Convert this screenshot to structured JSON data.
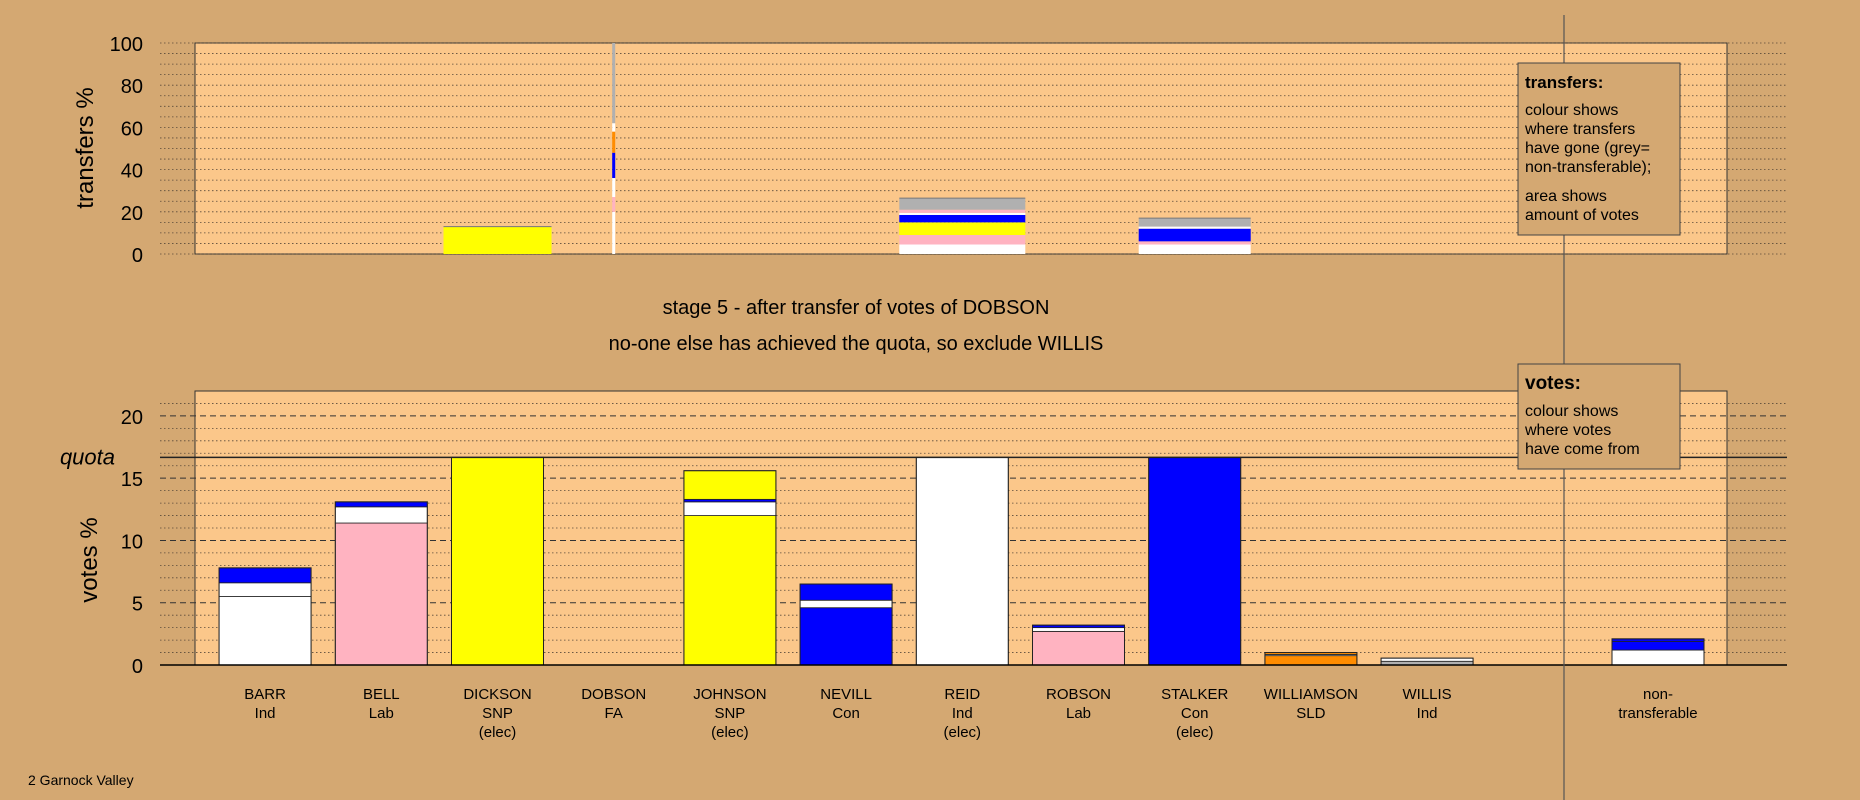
{
  "colors": {
    "background": "#d4a872",
    "panel": "#fbc78a",
    "con": "#0000ff",
    "snp": "#ffff00",
    "lab": "#ffb3c1",
    "ind": "#ffffff",
    "sld": "#ff8c00",
    "nontransferable": "#b0b0b0"
  },
  "stage_text": {
    "line1": "stage 5 - after transfer of votes of DOBSON",
    "line2": "no-one else has achieved the quota, so exclude WILLIS"
  },
  "footer": {
    "area": "2 Garnock Valley"
  },
  "legend_transfers": {
    "title": "transfers:",
    "lines": [
      "colour shows",
      "where transfers",
      "have gone (grey=",
      "non-transferable);"
    ],
    "lines2": [
      "area shows",
      "amount of votes"
    ]
  },
  "legend_votes": {
    "title": "votes:",
    "lines": [
      "colour shows",
      "where votes",
      "have come from"
    ]
  },
  "quota_label": "quota",
  "chart_data": [
    {
      "type": "bar",
      "ylabel": "transfers %",
      "ylim": [
        0,
        100
      ],
      "yticks": [
        0,
        20,
        40,
        60,
        80,
        100
      ],
      "grid": true,
      "bars": [
        {
          "cand": "DICKSON",
          "segments": [
            {
              "color": "snp",
              "value": 13
            }
          ]
        },
        {
          "cand": "REID",
          "segments": [
            {
              "color": "ind",
              "value": 4.5
            },
            {
              "color": "lab",
              "value": 4.5
            },
            {
              "color": "snp",
              "value": 6
            },
            {
              "color": "con",
              "value": 3.5
            },
            {
              "color": "ind",
              "value": 1
            },
            {
              "color": "lab",
              "value": 1.5
            },
            {
              "color": "nontransferable",
              "value": 5.5
            }
          ]
        },
        {
          "cand": "STALKER",
          "segments": [
            {
              "color": "ind",
              "value": 4.5
            },
            {
              "color": "lab",
              "value": 1.5
            },
            {
              "color": "con",
              "value": 6
            },
            {
              "color": "ind",
              "value": 1
            },
            {
              "color": "nontransferable",
              "value": 4
            }
          ]
        }
      ],
      "dobson_line": [
        {
          "color": "ind",
          "from": 0,
          "to": 20
        },
        {
          "color": "lab",
          "from": 20,
          "to": 27
        },
        {
          "color": "ind",
          "from": 27,
          "to": 36
        },
        {
          "color": "con",
          "from": 36,
          "to": 48
        },
        {
          "color": "sld",
          "from": 48,
          "to": 58
        },
        {
          "color": "ind",
          "from": 58,
          "to": 62
        },
        {
          "color": "nontransferable",
          "from": 62,
          "to": 100
        }
      ]
    },
    {
      "type": "bar",
      "ylabel": "votes %",
      "ylim": [
        0,
        22
      ],
      "yticks": [
        0,
        5,
        10,
        15,
        20
      ],
      "quota": 16.67,
      "candidates": [
        {
          "name": "BARR",
          "party": "Ind",
          "elec": "",
          "segments": [
            {
              "color": "ind",
              "value": 5.5
            },
            {
              "color": "ind",
              "value": 1.1
            },
            {
              "color": "con",
              "value": 1.2
            }
          ]
        },
        {
          "name": "BELL",
          "party": "Lab",
          "elec": "",
          "segments": [
            {
              "color": "lab",
              "value": 11.4
            },
            {
              "color": "ind",
              "value": 1.3
            },
            {
              "color": "con",
              "value": 0.4
            }
          ]
        },
        {
          "name": "DICKSON",
          "party": "SNP",
          "elec": "(elec)",
          "segments": [
            {
              "color": "snp",
              "value": 16.67
            }
          ]
        },
        {
          "name": "DOBSON",
          "party": "FA",
          "elec": "",
          "segments": []
        },
        {
          "name": "JOHNSON",
          "party": "SNP",
          "elec": "(elec)",
          "segments": [
            {
              "color": "snp",
              "value": 12
            },
            {
              "color": "ind",
              "value": 1.1
            },
            {
              "color": "con",
              "value": 0.2
            },
            {
              "color": "snp",
              "value": 2.3
            }
          ]
        },
        {
          "name": "NEVILL",
          "party": "Con",
          "elec": "",
          "segments": [
            {
              "color": "con",
              "value": 4.6
            },
            {
              "color": "ind",
              "value": 0.6
            },
            {
              "color": "con",
              "value": 1.3
            }
          ]
        },
        {
          "name": "REID",
          "party": "Ind",
          "elec": "(elec)",
          "segments": [
            {
              "color": "ind",
              "value": 16.67
            }
          ]
        },
        {
          "name": "ROBSON",
          "party": "Lab",
          "elec": "",
          "segments": [
            {
              "color": "lab",
              "value": 2.7
            },
            {
              "color": "ind",
              "value": 0.3
            },
            {
              "color": "con",
              "value": 0.2
            }
          ]
        },
        {
          "name": "STALKER",
          "party": "Con",
          "elec": "(elec)",
          "segments": [
            {
              "color": "con",
              "value": 16.67
            }
          ]
        },
        {
          "name": "WILLIAMSON",
          "party": "SLD",
          "elec": "",
          "segments": [
            {
              "color": "sld",
              "value": 0.75
            },
            {
              "color": "ind",
              "value": 0.1
            },
            {
              "color": "sld",
              "value": 0.15
            }
          ]
        },
        {
          "name": "WILLIS",
          "party": "Ind",
          "elec": "",
          "segments": [
            {
              "color": "nontransferable",
              "value": 0.3
            },
            {
              "color": "ind",
              "value": 0.25
            }
          ]
        },
        {
          "name": "",
          "party": "",
          "elec": "",
          "segments": []
        }
      ],
      "nontransferable": {
        "label1": "non-",
        "label2": "transferable",
        "segments": [
          {
            "color": "ind",
            "value": 1.2
          },
          {
            "color": "con",
            "value": 0.7
          },
          {
            "color": "con",
            "value": 0.2
          }
        ]
      }
    }
  ]
}
